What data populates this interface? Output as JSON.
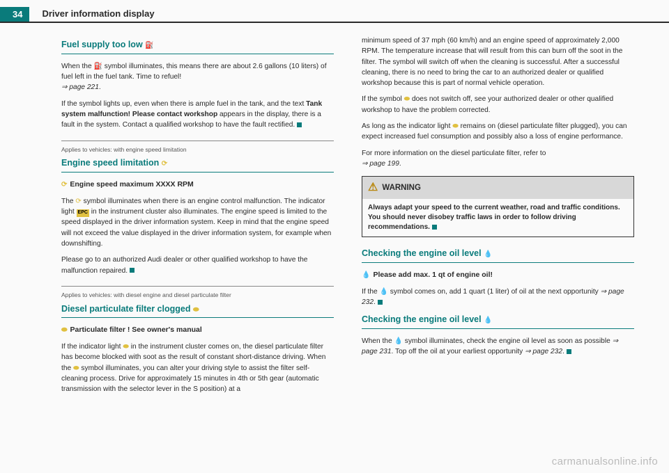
{
  "page_number": "34",
  "chapter_title": "Driver information display",
  "watermark": "carmanualsonline.info",
  "colors": {
    "teal": "#0a7b7b",
    "amber": "#e0c040",
    "text": "#2a2a2a",
    "bg": "#fafafa"
  },
  "icons": {
    "fuel": "⛽",
    "speed": "⟳",
    "filter": "⬬",
    "oil": "💧",
    "epc": "EPC",
    "warning": "⚠",
    "end": "■"
  },
  "left": {
    "sec1": {
      "heading": "Fuel supply too low",
      "p1a": "When the ",
      "p1b": " symbol illuminates, this means there are about 2.6 gallons (10 liters) of fuel left in the fuel tank. Time to refuel!",
      "ref1": "page 221",
      "p2a": "If the symbol lights up, even when there is ample fuel in the tank, and the text ",
      "p2bold": "Tank system malfunction! Please contact workshop",
      "p2b": " appears in the display, there is a fault in the system. Contact a qualified workshop to have the fault rectified."
    },
    "sec2": {
      "applies": "Applies to vehicles: with engine speed limitation",
      "heading": "Engine speed limitation",
      "sub": "Engine speed maximum XXXX RPM",
      "p1a": "The ",
      "p1b": " symbol illuminates when there is an engine control malfunction. The indicator light ",
      "p1c": " in the instrument cluster also illuminates. The engine speed is limited to the speed displayed in the driver information system. Keep in mind that the engine speed will not exceed the value displayed in the driver information system, for example when downshifting.",
      "p2": "Please go to an authorized Audi dealer or other qualified workshop to have the malfunction repaired."
    },
    "sec3": {
      "applies": "Applies to vehicles: with diesel engine and diesel particulate filter",
      "heading": "Diesel particulate filter clogged",
      "sub": "Particulate filter ! See owner's manual",
      "p1a": "If the indicator light ",
      "p1b": " in the instrument cluster comes on, the diesel particulate filter has become blocked with soot as the result of constant short-distance driving. When the ",
      "p1c": " symbol illuminates, you can alter your driving style to assist the filter self-cleaning process. Drive for approximately 15 minutes in 4th or 5th gear (automatic transmission with the selector lever in the S position) at a"
    }
  },
  "right": {
    "p1": "minimum speed of 37 mph (60 km/h) and an engine speed of approximately 2,000 RPM. The temperature increase that will result from this can burn off the soot in the filter. The symbol will switch off when the cleaning is successful. After a successful cleaning, there is no need to bring the car to an authorized dealer or qualified workshop because this is part of normal vehicle operation.",
    "p2a": "If the symbol ",
    "p2b": " does not switch off, see your authorized dealer or other qualified workshop to have the problem corrected.",
    "p3a": "As long as the indicator light ",
    "p3b": " remains on (diesel particulate filter plugged), you can expect increased fuel consumption and possibly also a loss of engine performance.",
    "p4": "For more information on the diesel particulate filter, refer to",
    "ref4": "page 199",
    "warning": {
      "title": "WARNING",
      "body": "Always adapt your speed to the current weather, road and traffic conditions. You should never disobey traffic laws in order to follow driving recommendations."
    },
    "sec4": {
      "heading": "Checking the engine oil level",
      "sub": "Please add max. 1 qt of engine oil!",
      "p1a": "If the ",
      "p1b": " symbol comes on, add 1 quart (1 liter) of oil at the next opportunity",
      "ref": "page 232"
    },
    "sec5": {
      "heading": "Checking the engine oil level",
      "p1a": "When the ",
      "p1b": " symbol illuminates, check the engine oil level as soon as possible",
      "ref1": "page 231",
      "p1c": ". Top off the oil at your earliest opportunity",
      "ref2": "page 232"
    }
  }
}
